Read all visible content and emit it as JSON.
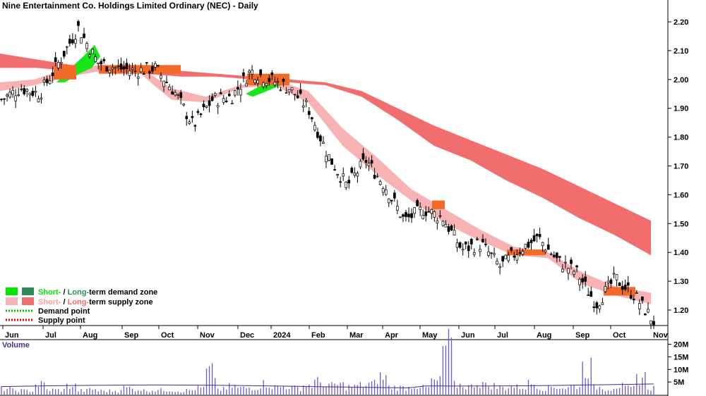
{
  "chart_data": {
    "type": "candlestick",
    "title": "Nine Entertainment Co. Holdings Limited Ordinary (NEC) - Daily",
    "x_tick_labels": [
      "Jun",
      "Jul",
      "Aug",
      "Sep",
      "Oct",
      "Nov",
      "Dec",
      "2024",
      "Feb",
      "Mar",
      "Apr",
      "May",
      "Jun",
      "Jul",
      "Aug",
      "Sep",
      "Oct",
      "Nov"
    ],
    "y_tick_labels": [
      "2.20",
      "2.10",
      "2.00",
      "1.90",
      "1.80",
      "1.70",
      "1.60",
      "1.50",
      "1.40",
      "1.30",
      "1.20"
    ],
    "ylim": [
      1.15,
      2.24
    ],
    "price_series": {
      "name": "Close",
      "points": [
        [
          "Jun",
          1.93
        ],
        [
          "Jun",
          1.97
        ],
        [
          "Jul",
          1.95
        ],
        [
          "Jul",
          2.06
        ],
        [
          "Aug",
          2.18
        ],
        [
          "Aug",
          2.06
        ],
        [
          "Sep",
          2.04
        ],
        [
          "Sep",
          2.03
        ],
        [
          "Oct",
          2.04
        ],
        [
          "Oct",
          1.96
        ],
        [
          "Nov",
          1.84
        ],
        [
          "Nov",
          1.93
        ],
        [
          "Dec",
          1.94
        ],
        [
          "Dec",
          2.03
        ],
        [
          "2024",
          2.0
        ],
        [
          "2024",
          1.97
        ],
        [
          "Feb",
          1.9
        ],
        [
          "Feb",
          1.74
        ],
        [
          "Mar",
          1.63
        ],
        [
          "Mar",
          1.72
        ],
        [
          "Apr",
          1.63
        ],
        [
          "Apr",
          1.51
        ],
        [
          "May",
          1.55
        ],
        [
          "May",
          1.52
        ],
        [
          "Jun",
          1.41
        ],
        [
          "Jun",
          1.43
        ],
        [
          "Jul",
          1.35
        ],
        [
          "Jul",
          1.41
        ],
        [
          "Aug",
          1.45
        ],
        [
          "Aug",
          1.37
        ],
        [
          "Sep",
          1.33
        ],
        [
          "Sep",
          1.22
        ],
        [
          "Oct",
          1.31
        ],
        [
          "Oct",
          1.25
        ],
        [
          "Nov",
          1.16
        ]
      ]
    },
    "long_term_zone_upper": [
      2.09,
      2.07,
      2.05,
      2.04,
      2.04,
      2.03,
      2.02,
      2.01,
      2.0,
      1.99,
      1.96,
      1.9,
      1.84,
      1.79,
      1.74,
      1.69,
      1.63,
      1.57,
      1.51
    ],
    "long_term_zone_lower": [
      2.04,
      2.04,
      2.03,
      2.03,
      2.02,
      2.01,
      2.01,
      2.0,
      1.99,
      1.98,
      1.94,
      1.86,
      1.77,
      1.72,
      1.65,
      1.59,
      1.52,
      1.46,
      1.39
    ],
    "short_term_zone_upper": [
      1.99,
      2.0,
      2.04,
      2.05,
      2.05,
      1.97,
      1.94,
      1.98,
      2.0,
      1.96,
      1.83,
      1.73,
      1.62,
      1.55,
      1.48,
      1.42,
      1.4,
      1.33,
      1.28,
      1.26
    ],
    "short_term_zone_lower": [
      1.96,
      1.98,
      2.01,
      2.03,
      2.03,
      1.93,
      1.92,
      1.97,
      1.98,
      1.92,
      1.77,
      1.67,
      1.58,
      1.5,
      1.44,
      1.39,
      1.38,
      1.29,
      1.25,
      1.22
    ],
    "volume": {
      "label": "Volume",
      "y_tick_labels": [
        "20M",
        "15M",
        "10M",
        "5M"
      ],
      "ylim": [
        0,
        21
      ],
      "values": [
        2.4,
        1.8,
        1.6,
        4.2,
        2.0,
        1.9,
        3.6,
        1.7,
        2.2,
        1.6,
        1.5,
        2.8,
        2.3,
        1.7,
        1.9,
        2.0,
        1.5,
        1.8,
        2.6,
        9.1,
        2.2,
        3.4,
        2.7,
        2.9,
        4.5,
        3.1,
        3.3,
        2.7,
        3.9,
        5.2,
        3.6,
        4.1,
        3.2,
        3.8,
        4.4,
        7.2,
        3.1,
        2.9,
        3.6,
        2.8,
        5.5,
        19.5,
        4.0,
        3.3,
        4.8,
        3.7,
        2.9,
        3.4,
        3.1,
        4.6,
        2.7,
        3.2,
        2.8,
        3.6,
        11.4,
        3.0,
        2.4,
        3.5,
        2.6,
        7.3,
        2.9
      ]
    },
    "legend": [
      {
        "label_a": "Short-",
        "label_b": " / ",
        "label_c": "Long-",
        "label_d": "term demand zone",
        "color_short": "#00e600",
        "color_long": "#2e8b57"
      },
      {
        "label_a": "Short-",
        "label_b": " / ",
        "label_c": "Long-",
        "label_d": "term supply zone",
        "color_short": "#f5b5b5",
        "color_long": "#f26d6d"
      },
      {
        "label": "Demand point",
        "color": "#00c000"
      },
      {
        "label": "Supply point",
        "color": "#e00000"
      }
    ],
    "colors": {
      "long_supply": "#f26d6d",
      "short_supply": "#f7b3b3",
      "demand": "#19e619",
      "overlap": "#f26a2a",
      "candle": "#000000",
      "volume_bar": "#6a5acd"
    }
  }
}
